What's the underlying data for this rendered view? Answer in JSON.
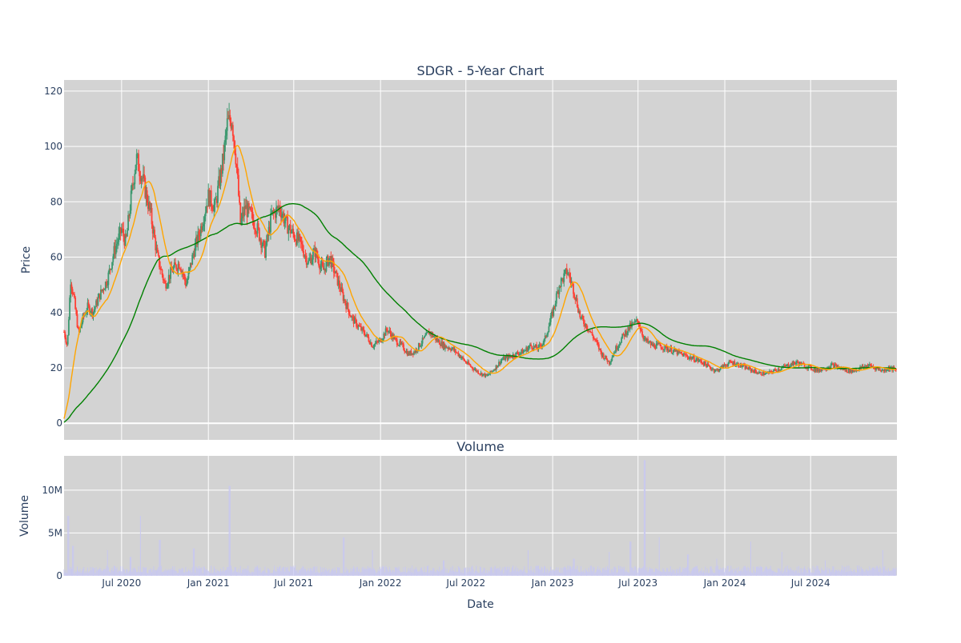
{
  "chart_data": [
    {
      "type": "candlestick",
      "title": "SDGR - 5-Year Chart",
      "ylabel": "Price",
      "ylim": [
        -6,
        124
      ],
      "yticks": [
        0,
        20,
        40,
        60,
        80,
        100,
        120
      ],
      "xrange": [
        "2020-03-01",
        "2024-12-31"
      ],
      "grid": true,
      "legend": "none",
      "colors": {
        "background": "#d3d3d3",
        "grid": "#ffffff",
        "increasing": "#3d9970",
        "decreasing": "#ff4136",
        "ma_short": "#ffa500",
        "ma_long": "#008000"
      },
      "series": [
        {
          "kind": "close",
          "x": [
            "2020-03-01",
            "2020-03-08",
            "2020-03-15",
            "2020-03-22",
            "2020-04-01",
            "2020-04-10",
            "2020-04-20",
            "2020-05-01",
            "2020-05-15",
            "2020-06-01",
            "2020-06-15",
            "2020-07-01",
            "2020-07-10",
            "2020-07-20",
            "2020-08-01",
            "2020-08-15",
            "2020-09-01",
            "2020-09-15",
            "2020-10-01",
            "2020-10-15",
            "2020-11-01",
            "2020-11-15",
            "2020-12-01",
            "2020-12-15",
            "2021-01-01",
            "2021-01-15",
            "2021-02-01",
            "2021-02-10",
            "2021-02-20",
            "2021-03-01",
            "2021-03-10",
            "2021-03-20",
            "2021-04-01",
            "2021-04-15",
            "2021-05-01",
            "2021-05-15",
            "2021-06-01",
            "2021-06-15",
            "2021-07-01",
            "2021-07-15",
            "2021-08-01",
            "2021-08-15",
            "2021-09-01",
            "2021-09-15",
            "2021-10-01",
            "2021-10-15",
            "2021-11-01",
            "2021-11-15",
            "2021-12-01",
            "2021-12-15",
            "2022-01-01",
            "2022-01-15",
            "2022-02-01",
            "2022-02-15",
            "2022-03-01",
            "2022-03-15",
            "2022-04-01",
            "2022-04-15",
            "2022-05-01",
            "2022-05-15",
            "2022-06-01",
            "2022-06-15",
            "2022-07-01",
            "2022-07-15",
            "2022-08-01",
            "2022-08-15",
            "2022-09-01",
            "2022-09-15",
            "2022-10-01",
            "2022-10-15",
            "2022-11-01",
            "2022-11-15",
            "2022-12-01",
            "2022-12-15",
            "2023-01-01",
            "2023-01-15",
            "2023-02-01",
            "2023-02-15",
            "2023-03-01",
            "2023-03-15",
            "2023-04-01",
            "2023-04-15",
            "2023-05-01",
            "2023-05-15",
            "2023-06-01",
            "2023-06-15",
            "2023-07-01",
            "2023-07-15",
            "2023-08-01",
            "2023-08-15",
            "2023-09-01",
            "2023-09-15",
            "2023-10-01",
            "2023-10-15",
            "2023-11-01",
            "2023-11-15",
            "2023-12-01",
            "2023-12-15",
            "2024-01-01",
            "2024-01-15",
            "2024-02-01",
            "2024-02-15",
            "2024-03-01",
            "2024-03-15",
            "2024-04-01",
            "2024-04-15",
            "2024-05-01",
            "2024-05-15",
            "2024-06-01",
            "2024-06-15",
            "2024-07-01",
            "2024-07-15",
            "2024-08-01",
            "2024-08-15",
            "2024-09-01",
            "2024-09-15",
            "2024-10-01",
            "2024-10-15",
            "2024-11-01",
            "2024-11-15",
            "2024-12-01",
            "2024-12-15",
            "2024-12-31"
          ],
          "y": [
            33,
            28,
            52,
            45,
            32,
            38,
            42,
            40,
            46,
            52,
            62,
            70,
            65,
            80,
            96,
            88,
            75,
            60,
            50,
            55,
            58,
            50,
            62,
            70,
            82,
            78,
            95,
            108,
            110,
            95,
            72,
            78,
            75,
            70,
            62,
            75,
            78,
            72,
            68,
            65,
            58,
            62,
            55,
            60,
            52,
            45,
            38,
            35,
            32,
            28,
            30,
            34,
            30,
            28,
            25,
            26,
            30,
            33,
            30,
            28,
            27,
            25,
            22,
            20,
            18,
            17,
            20,
            23,
            24,
            25,
            26,
            28,
            27,
            30,
            40,
            50,
            55,
            48,
            38,
            35,
            30,
            25,
            22,
            27,
            32,
            35,
            37,
            30,
            28,
            28,
            27,
            26,
            25,
            24,
            23,
            22,
            20,
            19,
            21,
            22,
            21,
            20,
            19,
            18,
            18,
            19,
            20,
            21,
            22,
            21,
            20,
            19,
            20,
            21,
            20,
            19,
            19,
            20,
            21,
            20,
            19,
            20,
            19
          ]
        },
        {
          "kind": "ma_short",
          "name": "",
          "note": "short moving average (orange)"
        },
        {
          "kind": "ma_long",
          "name": "",
          "note": "long moving average (green)"
        }
      ]
    },
    {
      "type": "bar",
      "title": "Volume",
      "xlabel": "Date",
      "ylabel": "Volume",
      "ylim": [
        0,
        14000000
      ],
      "yticks": [
        0,
        5000000,
        10000000
      ],
      "ytick_labels": [
        "0",
        "5M",
        "10M"
      ],
      "xticks": [
        "2020-07-01",
        "2021-01-01",
        "2021-07-01",
        "2022-01-01",
        "2022-07-01",
        "2023-01-01",
        "2023-07-01",
        "2024-01-01",
        "2024-07-01"
      ],
      "xtick_labels": [
        "Jul 2020",
        "Jan 2021",
        "Jul 2021",
        "Jan 2022",
        "Jul 2022",
        "Jan 2023",
        "Jul 2023",
        "Jan 2024",
        "Jul 2024"
      ],
      "color": "#c8c8f0",
      "spikes": [
        {
          "x": "2020-03-10",
          "v": 7000000
        },
        {
          "x": "2020-03-20",
          "v": 3500000
        },
        {
          "x": "2020-06-01",
          "v": 3000000
        },
        {
          "x": "2020-07-20",
          "v": 2200000
        },
        {
          "x": "2020-08-10",
          "v": 7000000
        },
        {
          "x": "2020-09-20",
          "v": 4200000
        },
        {
          "x": "2020-12-01",
          "v": 3200000
        },
        {
          "x": "2021-02-15",
          "v": 10500000
        },
        {
          "x": "2021-10-15",
          "v": 4500000
        },
        {
          "x": "2021-12-15",
          "v": 3000000
        },
        {
          "x": "2022-05-15",
          "v": 1800000
        },
        {
          "x": "2022-11-10",
          "v": 3000000
        },
        {
          "x": "2023-02-15",
          "v": 2000000
        },
        {
          "x": "2023-05-01",
          "v": 2800000
        },
        {
          "x": "2023-06-15",
          "v": 4000000
        },
        {
          "x": "2023-07-15",
          "v": 13500000
        },
        {
          "x": "2023-08-15",
          "v": 4500000
        },
        {
          "x": "2023-10-15",
          "v": 2500000
        },
        {
          "x": "2023-12-15",
          "v": 2000000
        },
        {
          "x": "2024-02-25",
          "v": 4000000
        },
        {
          "x": "2024-05-01",
          "v": 2800000
        },
        {
          "x": "2024-08-01",
          "v": 1800000
        },
        {
          "x": "2024-12-01",
          "v": 3000000
        }
      ]
    }
  ]
}
